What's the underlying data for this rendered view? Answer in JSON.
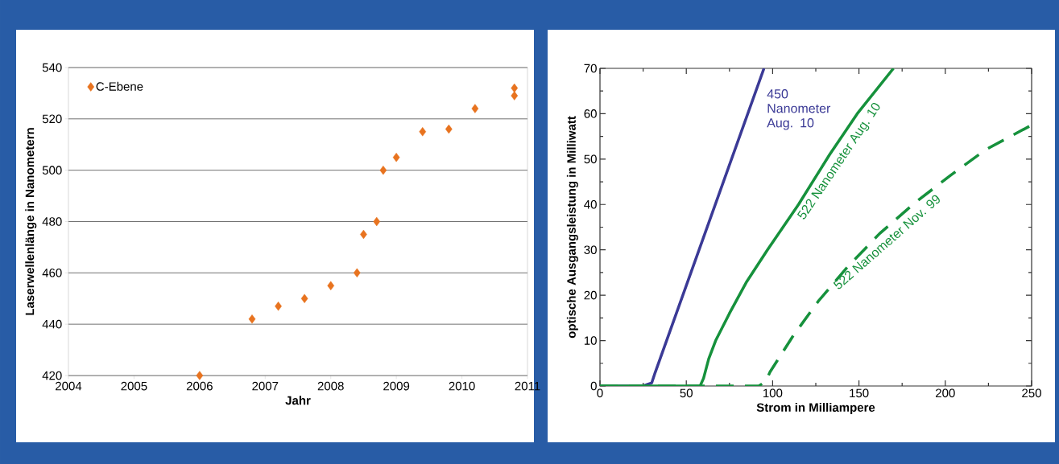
{
  "chart_data": [
    {
      "type": "scatter",
      "xlabel": "Jahr",
      "ylabel": "Laserwellenlänge in Nanometern",
      "x": [
        2006.0,
        2006.8,
        2007.2,
        2007.6,
        2008.0,
        2008.4,
        2008.5,
        2008.7,
        2008.8,
        2009.0,
        2009.4,
        2009.8,
        2010.2,
        2010.8,
        2010.8
      ],
      "series": [
        {
          "name": "C-Ebene",
          "color": "#e8731f",
          "values": [
            420,
            442,
            447,
            450,
            455,
            460,
            475,
            480,
            500,
            505,
            515,
            516,
            524,
            529,
            532
          ]
        }
      ],
      "xlim": [
        2004,
        2011
      ],
      "ylim": [
        420,
        540
      ],
      "xticks": [
        2004,
        2005,
        2006,
        2007,
        2008,
        2009,
        2010,
        2011
      ],
      "yticks": [
        420,
        440,
        460,
        480,
        500,
        520,
        540
      ],
      "grid": "y",
      "legend": "top left",
      "marker": "diamond"
    },
    {
      "type": "line",
      "xlabel": "Strom in Milliampere",
      "ylabel": "optische Ausgangsleistung in Milliwatt",
      "series": [
        {
          "name": "450 Nanometer Aug. 10",
          "color": "#3b3a96",
          "line_style": "solid",
          "x": [
            0,
            25,
            30,
            32,
            95
          ],
          "values": [
            0,
            0,
            0.7,
            3,
            70
          ]
        },
        {
          "name": "522 Nanometer Aug. 10",
          "color": "#16913c",
          "line_style": "solid",
          "x": [
            0,
            58,
            60,
            63,
            67,
            75,
            85,
            97,
            115,
            133,
            149,
            170
          ],
          "values": [
            0,
            0,
            1.7,
            6,
            10,
            16,
            23,
            30,
            40,
            51,
            60,
            70
          ]
        },
        {
          "name": "522 Nanometer Nov. 99",
          "color": "#16913c",
          "line_style": "dashed",
          "x": [
            0,
            92,
            96,
            98.5,
            111.6,
            126.5,
            143.3,
            162,
            182.5,
            203,
            223.5,
            250
          ],
          "values": [
            0,
            0,
            1,
            3.1,
            10.9,
            18.7,
            26.2,
            33.6,
            40.4,
            46.4,
            52.1,
            57.5
          ]
        }
      ],
      "xlim": [
        0,
        250
      ],
      "ylim": [
        0,
        70
      ],
      "xticks": [
        0,
        50,
        100,
        150,
        200,
        250
      ],
      "yticks": [
        0,
        10,
        20,
        30,
        40,
        50,
        60,
        70
      ],
      "grid": false,
      "legend": false,
      "marker": "none"
    }
  ]
}
